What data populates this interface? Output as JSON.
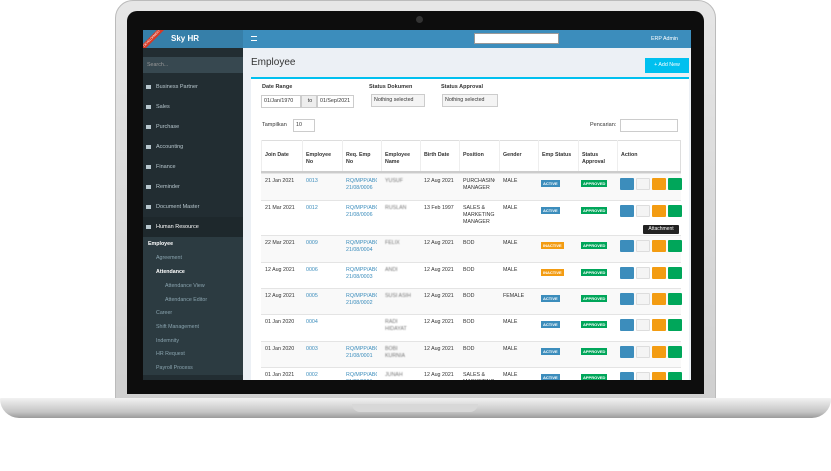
{
  "brand": "Sky HR",
  "ribbon": "DEVELOPMENT",
  "user": "ERP Admin",
  "sidebar": {
    "search": "Search...",
    "menu": [
      "Business Partner",
      "Sales",
      "Purchase",
      "Accounting",
      "Finance",
      "Reminder",
      "Document Master",
      "Human Resource"
    ],
    "submenu": [
      "Employee",
      "Agreement",
      "Attendance",
      "Attendance View",
      "Attendance Editor",
      "Career",
      "Shift Management",
      "Indemnity",
      "HR Request",
      "Payroll Process"
    ]
  },
  "page": {
    "title": "Employee",
    "add_button": "+ Add New",
    "tooltip": "Attachment",
    "filters": {
      "date_range": "Date Range",
      "date_from": "01/Jan/1970",
      "date_to_label": "to",
      "date_to": "01/Sep/2021",
      "status_dokumen": "Status Dokumen",
      "status_approval": "Status Approval",
      "nothing_selected": "Nothing selected"
    },
    "show_label": "Tampilkan",
    "show_value": "10",
    "search_label": "Pencarian:"
  },
  "table": {
    "headers": [
      "Join Date",
      "Employee No",
      "Req. Emp No",
      "Employee Name",
      "Birth Date",
      "Position",
      "Gender",
      "Emp Status",
      "Status Approval",
      "Action"
    ],
    "status_colors": {
      "ACTIVE": "#3c8dbc",
      "INACTIVE": "#f39c12",
      "APPROVED": "#00a65a"
    },
    "rows": [
      [
        "21 Jan 2021",
        "0013",
        "RQ/MPP/ABC-21/08/0006",
        "YUSUF",
        "12 Aug 2021",
        "PURCHASING MANAGER",
        "MALE",
        "ACTIVE",
        "APPROVED"
      ],
      [
        "21 Mar 2021",
        "0012",
        "RQ/MPP/ABC-21/08/0006",
        "RUSLAN",
        "13 Feb 1997",
        "SALES & MARKETING MANAGER",
        "MALE",
        "ACTIVE",
        "APPROVED"
      ],
      [
        "22 Mar 2021",
        "0009",
        "RQ/MPP/ABC-21/08/0004",
        "FELIX",
        "12 Aug 2021",
        "BOD",
        "MALE",
        "INACTIVE",
        "APPROVED"
      ],
      [
        "12 Aug 2021",
        "0006",
        "RQ/MPP/ABC-21/08/0003",
        "ANDI",
        "12 Aug 2021",
        "BOD",
        "MALE",
        "INACTIVE",
        "APPROVED"
      ],
      [
        "12 Aug 2021",
        "0005",
        "RQ/MPP/ABC-21/08/0002",
        "SUSI ASIH",
        "12 Aug 2021",
        "BOD",
        "FEMALE",
        "ACTIVE",
        "APPROVED"
      ],
      [
        "01 Jan 2020",
        "0004",
        null,
        "RADI HIDAYAT",
        "12 Aug 2021",
        "BOD",
        "MALE",
        "ACTIVE",
        "APPROVED"
      ],
      [
        "01 Jan 2020",
        "0003",
        "RQ/MPP/ABC-21/08/0001",
        "BOBI KURNIA",
        "12 Aug 2021",
        "BOD",
        "MALE",
        "ACTIVE",
        "APPROVED"
      ],
      [
        "01 Jan 2021",
        "0002",
        "RQ/MPP/ABC-21/08/0001",
        "JUNAH",
        "12 Aug 2021",
        "SALES & MARKETING MANAGER",
        "MALE",
        "ACTIVE",
        "APPROVED"
      ]
    ]
  }
}
